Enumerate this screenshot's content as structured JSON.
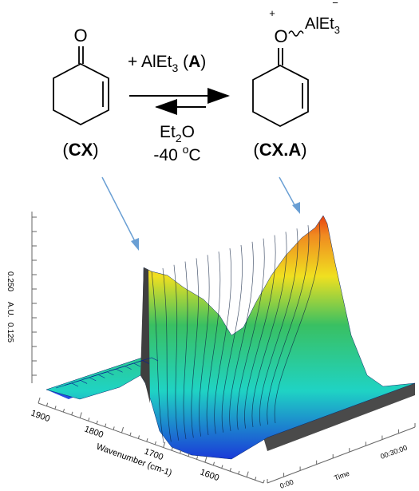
{
  "scheme": {
    "reactant_label_open": "(",
    "reactant_label_bold": "CX",
    "reactant_label_close": ")",
    "product_label_open": "(",
    "product_label_bold": "CX.A",
    "product_label_close": ")",
    "reagent_prefix": "+ AlEt",
    "reagent_sub": "3",
    "reagent_paren_open": " (",
    "reagent_bold": "A",
    "reagent_paren_close": ")",
    "solvent": "Et",
    "solvent_sub": "2",
    "solvent_end": "O",
    "temperature_value": "-40 ",
    "temperature_sup": "o",
    "temperature_unit": "C",
    "carbonyl_O": "O",
    "complex_O": "O",
    "complex_charge_plus": "+",
    "complex_charge_minus": "−",
    "complex_metal": "AlEt",
    "complex_metal_sub": "3"
  },
  "colors": {
    "arrow_blue": "#6a9fd4",
    "surface_low": "#1a3ad8",
    "surface_mid": "#1fd3c4",
    "surface_high": "#f0e020",
    "surface_peak": "#e84010",
    "side_gray": "#4a4a4a"
  },
  "plot": {
    "y_axis_label": "A.U.",
    "y_ticks": [
      "0.125",
      "0.250"
    ],
    "x_axis_label": "Wavenumber (cm-1)",
    "x_ticks": [
      "1900",
      "1800",
      "1700",
      "1600"
    ],
    "time_axis_label": "Time",
    "time_ticks": [
      "00:30:00",
      "0:00"
    ]
  }
}
